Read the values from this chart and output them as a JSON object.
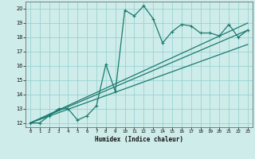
{
  "title": "",
  "xlabel": "Humidex (Indice chaleur)",
  "ylabel": "",
  "xlim": [
    -0.5,
    23.5
  ],
  "ylim": [
    11.7,
    20.5
  ],
  "xticks": [
    0,
    1,
    2,
    3,
    4,
    5,
    6,
    7,
    8,
    9,
    10,
    11,
    12,
    13,
    14,
    15,
    16,
    17,
    18,
    19,
    20,
    21,
    22,
    23
  ],
  "yticks": [
    12,
    13,
    14,
    15,
    16,
    17,
    18,
    19,
    20
  ],
  "background_color": "#ceecea",
  "grid_color": "#8ecfcc",
  "line_color": "#1a7a6e",
  "line1_x": [
    0,
    1,
    2,
    3,
    4,
    5,
    6,
    7,
    8,
    9,
    10,
    11,
    12,
    13,
    14,
    15,
    16,
    17,
    18,
    19,
    20,
    21,
    22,
    23
  ],
  "line1_y": [
    12.0,
    12.0,
    12.5,
    13.0,
    13.0,
    12.2,
    12.5,
    13.2,
    16.1,
    14.2,
    19.9,
    19.5,
    20.2,
    19.3,
    17.6,
    18.4,
    18.9,
    18.8,
    18.3,
    18.3,
    18.1,
    18.9,
    18.0,
    18.5
  ],
  "line2_x": [
    0,
    23
  ],
  "line2_y": [
    12.0,
    18.5
  ],
  "line3_x": [
    0,
    23
  ],
  "line3_y": [
    12.0,
    19.0
  ],
  "line4_x": [
    0,
    23
  ],
  "line4_y": [
    12.0,
    17.5
  ]
}
